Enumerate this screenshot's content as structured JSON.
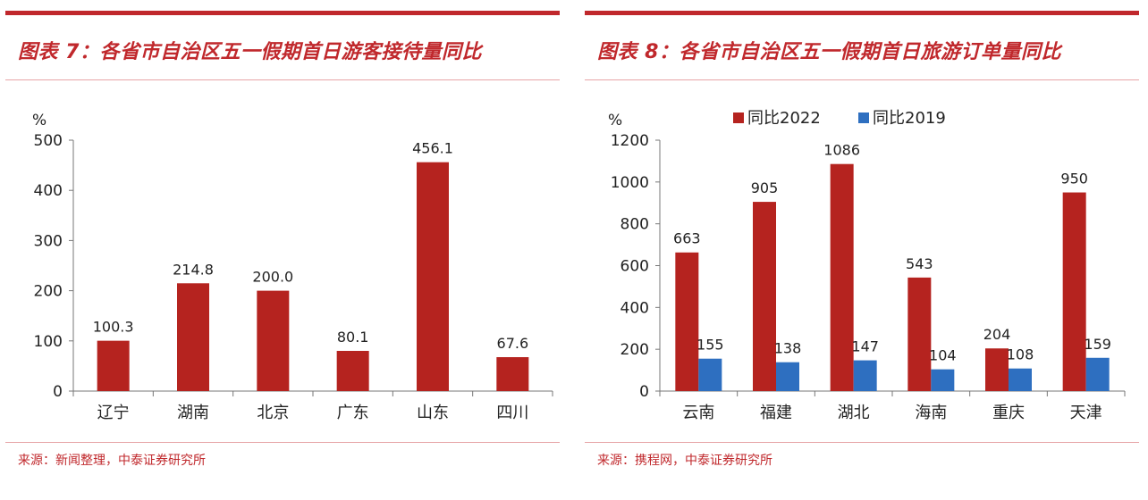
{
  "charts": [
    {
      "title": "图表 7：各省市自治区五一假期首日游客接待量同比",
      "source": "来源：新闻整理，中泰证券研究所"
    },
    {
      "title": "图表 8：各省市自治区五一假期首日旅游订单量同比",
      "source": "来源：携程网，中泰证券研究所"
    }
  ],
  "colors": {
    "accent": "#c0282c",
    "red_bar": "#b5231f",
    "blue_bar": "#2e6fc0"
  },
  "chart_data": [
    {
      "type": "bar",
      "title": "各省市自治区五一假期首日游客接待量同比",
      "unit": "%",
      "categories": [
        "辽宁",
        "湖南",
        "北京",
        "广东",
        "山东",
        "四川"
      ],
      "series": [
        {
          "values": [
            100.3,
            214.8,
            200.0,
            80.1,
            456.1,
            67.6
          ],
          "labels": [
            "100.3",
            "214.8",
            "200.0",
            "80.1",
            "456.1",
            "67.6"
          ],
          "color": "#b5231f"
        }
      ],
      "ylim": [
        0,
        500
      ],
      "yticks": [
        0,
        100,
        200,
        300,
        400,
        500
      ],
      "legend": "none",
      "grid": false
    },
    {
      "type": "bar",
      "title": "各省市自治区五一假期首日旅游订单量同比",
      "unit": "%",
      "categories": [
        "云南",
        "福建",
        "湖北",
        "海南",
        "重庆",
        "天津"
      ],
      "series": [
        {
          "name": "同比2022",
          "values": [
            663,
            905,
            1086,
            543,
            204,
            950
          ],
          "labels": [
            "663",
            "905",
            "1086",
            "543",
            "204",
            "950"
          ],
          "color": "#b5231f"
        },
        {
          "name": "同比2019",
          "values": [
            155,
            138,
            147,
            104,
            108,
            159
          ],
          "labels": [
            "155",
            "138",
            "147",
            "104",
            "108",
            "159"
          ],
          "color": "#2e6fc0"
        }
      ],
      "ylim": [
        0,
        1200
      ],
      "yticks": [
        0,
        200,
        400,
        600,
        800,
        1000,
        1200
      ],
      "legend": "top",
      "grid": false
    }
  ]
}
